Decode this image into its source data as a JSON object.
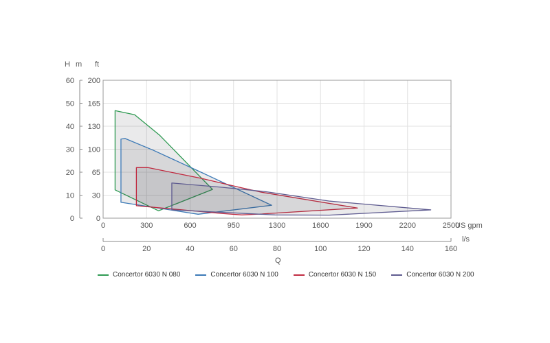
{
  "chart_data": {
    "type": "area",
    "title": "",
    "y_header": {
      "h": "H",
      "m": "m",
      "ft": "ft"
    },
    "xlabel": "Q",
    "x_unit_primary": "US gpm",
    "x_unit_secondary": "l/s",
    "xlim_ls": [
      0,
      160
    ],
    "ylim_m": [
      0,
      60
    ],
    "x_ticks_ls": [
      "0",
      "20",
      "40",
      "60",
      "80",
      "100",
      "120",
      "140",
      "160"
    ],
    "x_ticks_gpm": [
      "0",
      "300",
      "600",
      "950",
      "1300",
      "1600",
      "1900",
      "2200",
      "2500"
    ],
    "y_ticks_m": [
      "0",
      "10",
      "20",
      "30",
      "40",
      "50",
      "60"
    ],
    "y_ticks_ft": [
      "0",
      "30",
      "65",
      "100",
      "130",
      "165",
      "200"
    ],
    "grid": true,
    "legend_position": "bottom",
    "series": [
      {
        "name": "Concertor 6030 N 080",
        "color": "#2e9a52",
        "points": [
          [
            5.5,
            46.8
          ],
          [
            14.5,
            45.0
          ],
          [
            26.1,
            36.0
          ],
          [
            50.3,
            12.5
          ],
          [
            25.5,
            3.2
          ],
          [
            5.5,
            12.3
          ]
        ]
      },
      {
        "name": "Concertor 6030 N 100",
        "color": "#3b79b6",
        "points": [
          [
            8.2,
            34.4
          ],
          [
            10.0,
            34.7
          ],
          [
            23.2,
            29.5
          ],
          [
            45,
            20
          ],
          [
            77.5,
            5.6
          ],
          [
            43.7,
            1.7
          ],
          [
            8.2,
            6.9
          ]
        ]
      },
      {
        "name": "Concertor 6030 N 150",
        "color": "#c02a40",
        "points": [
          [
            15.3,
            22.0
          ],
          [
            20.6,
            22.0
          ],
          [
            45.2,
            17.3
          ],
          [
            62.3,
            13.5
          ],
          [
            72.7,
            11.3
          ],
          [
            117,
            4.4
          ],
          [
            72.7,
            1.8
          ],
          [
            63.8,
            1.4
          ],
          [
            53.8,
            2.1
          ],
          [
            15.3,
            5.4
          ]
        ]
      },
      {
        "name": "Concertor 6030 N 200",
        "color": "#5e5b90",
        "points": [
          [
            31.6,
            15.3
          ],
          [
            53.8,
            13.5
          ],
          [
            75,
            11.5
          ],
          [
            104.3,
            7.4
          ],
          [
            150.7,
            3.6
          ],
          [
            104,
            1.3
          ],
          [
            79,
            1.4
          ],
          [
            31.6,
            3.6
          ]
        ]
      }
    ]
  }
}
